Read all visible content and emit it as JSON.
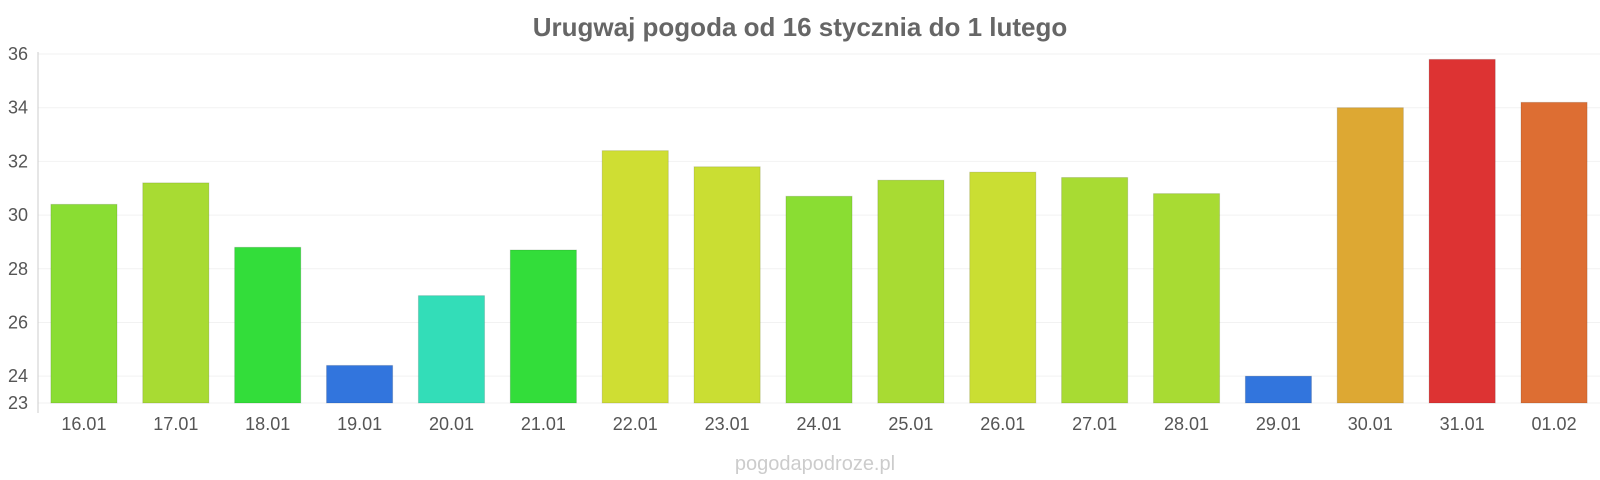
{
  "watermark": "pogodapodroze.pl",
  "chart_data": {
    "type": "bar",
    "title": "Urugwaj pogoda od 16 stycznia do 1 lutego",
    "xlabel": "",
    "ylabel": "",
    "categories": [
      "16.01",
      "17.01",
      "18.01",
      "19.01",
      "20.01",
      "21.01",
      "22.01",
      "23.01",
      "24.01",
      "25.01",
      "26.01",
      "27.01",
      "28.01",
      "29.01",
      "30.01",
      "31.01",
      "01.02"
    ],
    "values": [
      30.4,
      31.2,
      28.8,
      24.4,
      27.0,
      28.7,
      32.4,
      31.8,
      30.7,
      31.3,
      31.6,
      31.4,
      30.8,
      24.0,
      34.0,
      35.8,
      34.2
    ],
    "colors": [
      "#8ADD33",
      "#A8DB33",
      "#33DD3A",
      "#3275DD",
      "#33DDB8",
      "#33DD3A",
      "#CFDE33",
      "#CADE33",
      "#8ADD33",
      "#A8DB33",
      "#CADE33",
      "#A8DB33",
      "#A8DB33",
      "#3275DD",
      "#DDA833",
      "#DD3333",
      "#DD6E33"
    ],
    "yticks": [
      23,
      24,
      26,
      28,
      30,
      32,
      34,
      36
    ],
    "ylim": [
      23,
      36
    ],
    "grid": true,
    "legend": "none"
  }
}
